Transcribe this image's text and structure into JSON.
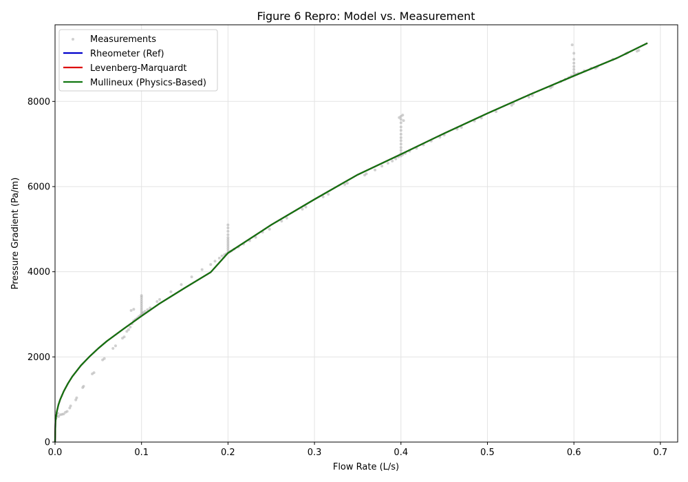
{
  "chart_data": {
    "type": "scatter",
    "title": "Figure 6 Repro: Model vs. Measurement",
    "xlabel": "Flow Rate (L/s)",
    "ylabel": "Pressure Gradient (Pa/m)",
    "xlim": [
      0,
      0.72
    ],
    "ylim": [
      0,
      9800
    ],
    "xticks": [
      0.0,
      0.1,
      0.2,
      0.3,
      0.4,
      0.5,
      0.6,
      0.7
    ],
    "xtick_labels": [
      "0.0",
      "0.1",
      "0.2",
      "0.3",
      "0.4",
      "0.5",
      "0.6",
      "0.7"
    ],
    "yticks": [
      0,
      2000,
      4000,
      6000,
      8000
    ],
    "ytick_labels": [
      "0",
      "2000",
      "4000",
      "6000",
      "8000"
    ],
    "grid": true,
    "legend_position": "top-left",
    "measurements": {
      "name": "Measurements",
      "color": "#b0b0b0",
      "points": [
        [
          0.001,
          560
        ],
        [
          0.002,
          620
        ],
        [
          0.003,
          680
        ],
        [
          0.004,
          600
        ],
        [
          0.006,
          640
        ],
        [
          0.008,
          650
        ],
        [
          0.01,
          660
        ],
        [
          0.012,
          700
        ],
        [
          0.014,
          720
        ],
        [
          0.017,
          800
        ],
        [
          0.018,
          850
        ],
        [
          0.024,
          990
        ],
        [
          0.025,
          1040
        ],
        [
          0.032,
          1280
        ],
        [
          0.033,
          1310
        ],
        [
          0.043,
          1600
        ],
        [
          0.045,
          1630
        ],
        [
          0.055,
          1930
        ],
        [
          0.057,
          1960
        ],
        [
          0.067,
          2200
        ],
        [
          0.07,
          2260
        ],
        [
          0.078,
          2440
        ],
        [
          0.08,
          2470
        ],
        [
          0.083,
          2600
        ],
        [
          0.085,
          2640
        ],
        [
          0.087,
          2700
        ],
        [
          0.089,
          2780
        ],
        [
          0.091,
          2850
        ],
        [
          0.093,
          2880
        ],
        [
          0.095,
          2910
        ],
        [
          0.097,
          2950
        ],
        [
          0.088,
          3090
        ],
        [
          0.091,
          3120
        ],
        [
          0.099,
          2980
        ],
        [
          0.1,
          3000
        ],
        [
          0.1,
          3050
        ],
        [
          0.1,
          3100
        ],
        [
          0.1,
          3150
        ],
        [
          0.1,
          3200
        ],
        [
          0.1,
          3250
        ],
        [
          0.1,
          3300
        ],
        [
          0.1,
          3350
        ],
        [
          0.1,
          3400
        ],
        [
          0.1,
          3440
        ],
        [
          0.101,
          3020
        ],
        [
          0.102,
          3040
        ],
        [
          0.104,
          3070
        ],
        [
          0.107,
          3110
        ],
        [
          0.11,
          3150
        ],
        [
          0.118,
          3300
        ],
        [
          0.121,
          3350
        ],
        [
          0.134,
          3530
        ],
        [
          0.146,
          3700
        ],
        [
          0.158,
          3880
        ],
        [
          0.17,
          4050
        ],
        [
          0.18,
          4170
        ],
        [
          0.185,
          4250
        ],
        [
          0.19,
          4320
        ],
        [
          0.193,
          4370
        ],
        [
          0.196,
          4400
        ],
        [
          0.198,
          4420
        ],
        [
          0.2,
          4450
        ],
        [
          0.2,
          4500
        ],
        [
          0.2,
          4550
        ],
        [
          0.2,
          4600
        ],
        [
          0.2,
          4650
        ],
        [
          0.2,
          4700
        ],
        [
          0.2,
          4750
        ],
        [
          0.2,
          4800
        ],
        [
          0.2,
          4870
        ],
        [
          0.2,
          4950
        ],
        [
          0.2,
          5030
        ],
        [
          0.2,
          5100
        ],
        [
          0.202,
          4470
        ],
        [
          0.204,
          4490
        ],
        [
          0.207,
          4530
        ],
        [
          0.212,
          4580
        ],
        [
          0.218,
          4650
        ],
        [
          0.225,
          4730
        ],
        [
          0.232,
          4810
        ],
        [
          0.24,
          4930
        ],
        [
          0.248,
          5000
        ],
        [
          0.262,
          5190
        ],
        [
          0.268,
          5260
        ],
        [
          0.286,
          5470
        ],
        [
          0.29,
          5520
        ],
        [
          0.31,
          5760
        ],
        [
          0.316,
          5820
        ],
        [
          0.335,
          6050
        ],
        [
          0.338,
          6080
        ],
        [
          0.358,
          6270
        ],
        [
          0.36,
          6300
        ],
        [
          0.37,
          6390
        ],
        [
          0.378,
          6480
        ],
        [
          0.385,
          6550
        ],
        [
          0.39,
          6600
        ],
        [
          0.394,
          6650
        ],
        [
          0.397,
          6700
        ],
        [
          0.4,
          6720
        ],
        [
          0.4,
          6780
        ],
        [
          0.4,
          6850
        ],
        [
          0.4,
          6920
        ],
        [
          0.4,
          7000
        ],
        [
          0.4,
          7080
        ],
        [
          0.4,
          7150
        ],
        [
          0.4,
          7230
        ],
        [
          0.4,
          7320
        ],
        [
          0.4,
          7400
        ],
        [
          0.4,
          7500
        ],
        [
          0.4,
          7580
        ],
        [
          0.4,
          7650
        ],
        [
          0.398,
          7620
        ],
        [
          0.402,
          7680
        ],
        [
          0.403,
          7550
        ],
        [
          0.402,
          6750
        ],
        [
          0.405,
          6780
        ],
        [
          0.41,
          6830
        ],
        [
          0.418,
          6900
        ],
        [
          0.426,
          6980
        ],
        [
          0.435,
          7070
        ],
        [
          0.445,
          7160
        ],
        [
          0.45,
          7210
        ],
        [
          0.465,
          7350
        ],
        [
          0.47,
          7390
        ],
        [
          0.485,
          7540
        ],
        [
          0.493,
          7610
        ],
        [
          0.51,
          7760
        ],
        [
          0.528,
          7910
        ],
        [
          0.53,
          7950
        ],
        [
          0.548,
          8100
        ],
        [
          0.552,
          8140
        ],
        [
          0.573,
          8320
        ],
        [
          0.575,
          8350
        ],
        [
          0.585,
          8470
        ],
        [
          0.59,
          8520
        ],
        [
          0.594,
          8560
        ],
        [
          0.597,
          8600
        ],
        [
          0.6,
          8620
        ],
        [
          0.6,
          8680
        ],
        [
          0.6,
          8750
        ],
        [
          0.6,
          8820
        ],
        [
          0.6,
          8900
        ],
        [
          0.6,
          8990
        ],
        [
          0.6,
          9130
        ],
        [
          0.598,
          9330
        ],
        [
          0.602,
          8640
        ],
        [
          0.605,
          8660
        ],
        [
          0.612,
          8720
        ],
        [
          0.62,
          8780
        ],
        [
          0.625,
          8780
        ],
        [
          0.627,
          8810
        ],
        [
          0.645,
          8990
        ],
        [
          0.66,
          9120
        ],
        [
          0.662,
          9140
        ],
        [
          0.673,
          9180
        ],
        [
          0.675,
          9200
        ]
      ]
    },
    "series": [
      {
        "name": "Rheometer (Ref)",
        "color": "#0000cc",
        "x": [
          0,
          0.0005,
          0.001,
          0.002,
          0.004,
          0.006,
          0.01,
          0.015,
          0.02,
          0.03,
          0.04,
          0.05,
          0.06,
          0.08,
          0.1,
          0.12,
          0.15,
          0.18,
          0.2,
          0.25,
          0.3,
          0.35,
          0.4,
          0.45,
          0.5,
          0.55,
          0.6,
          0.65,
          0.685
        ],
        "y": [
          0,
          470,
          570,
          710,
          880,
          1000,
          1190,
          1380,
          1540,
          1800,
          2010,
          2200,
          2370,
          2670,
          2960,
          3240,
          3620,
          3990,
          4440,
          5100,
          5700,
          6280,
          6760,
          7250,
          7720,
          8170,
          8600,
          9020,
          9370
        ]
      },
      {
        "name": "Levenberg-Marquardt",
        "color": "#dd0000",
        "x": [
          0,
          0.0005,
          0.001,
          0.002,
          0.004,
          0.006,
          0.01,
          0.015,
          0.02,
          0.03,
          0.04,
          0.05,
          0.06,
          0.08,
          0.1,
          0.12,
          0.15,
          0.18,
          0.2,
          0.25,
          0.3,
          0.35,
          0.4,
          0.45,
          0.5,
          0.55,
          0.6,
          0.65,
          0.685
        ],
        "y": [
          0,
          470,
          570,
          710,
          880,
          1000,
          1190,
          1380,
          1540,
          1800,
          2010,
          2200,
          2370,
          2670,
          2960,
          3240,
          3620,
          3990,
          4440,
          5100,
          5700,
          6280,
          6760,
          7250,
          7720,
          8170,
          8600,
          9020,
          9370
        ]
      },
      {
        "name": "Mullineux (Physics-Based)",
        "color": "#117711",
        "x": [
          0,
          0.0005,
          0.001,
          0.002,
          0.004,
          0.006,
          0.01,
          0.015,
          0.02,
          0.03,
          0.04,
          0.05,
          0.06,
          0.08,
          0.1,
          0.12,
          0.15,
          0.18,
          0.2,
          0.25,
          0.3,
          0.35,
          0.4,
          0.45,
          0.5,
          0.55,
          0.6,
          0.65,
          0.685
        ],
        "y": [
          0,
          470,
          570,
          710,
          880,
          1000,
          1190,
          1380,
          1540,
          1800,
          2010,
          2200,
          2370,
          2670,
          2960,
          3240,
          3620,
          3990,
          4440,
          5100,
          5700,
          6280,
          6760,
          7250,
          7720,
          8170,
          8600,
          9020,
          9370
        ]
      }
    ]
  }
}
